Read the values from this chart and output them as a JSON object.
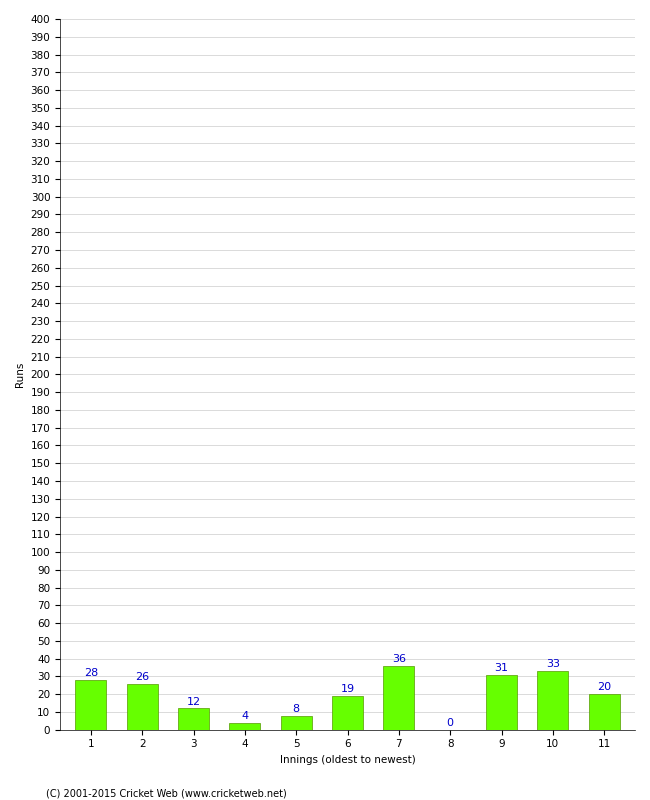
{
  "title": "",
  "categories": [
    "1",
    "2",
    "3",
    "4",
    "5",
    "6",
    "7",
    "8",
    "9",
    "10",
    "11"
  ],
  "values": [
    28,
    26,
    12,
    4,
    8,
    19,
    36,
    0,
    31,
    33,
    20
  ],
  "bar_color": "#66ff00",
  "bar_edge_color": "#559900",
  "label_color": "#0000cc",
  "xlabel": "Innings (oldest to newest)",
  "ylabel": "Runs",
  "ylim": [
    0,
    400
  ],
  "ytick_step": 10,
  "background_color": "#ffffff",
  "grid_color": "#cccccc",
  "footer": "(C) 2001-2015 Cricket Web (www.cricketweb.net)",
  "label_fontsize": 8,
  "axis_fontsize": 7.5,
  "footer_fontsize": 7
}
